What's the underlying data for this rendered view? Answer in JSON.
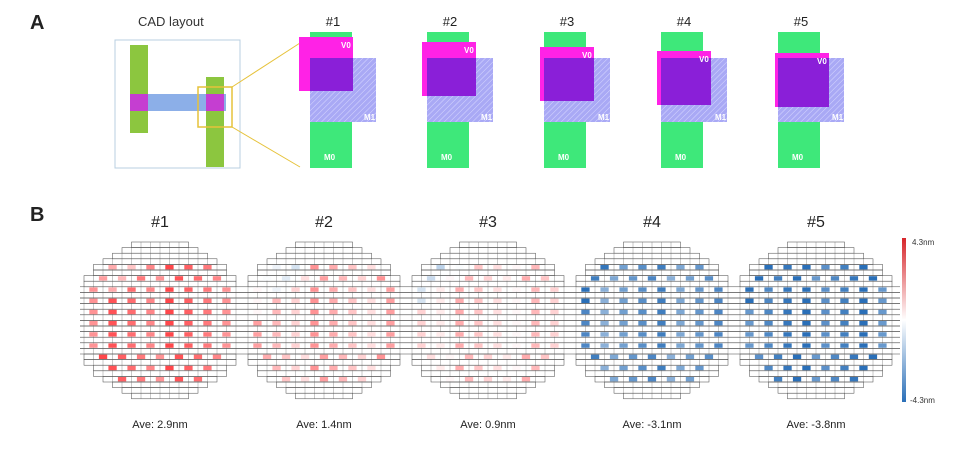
{
  "panel_a": {
    "letter": "A",
    "cad_title": "CAD layout",
    "cases": [
      {
        "label": "#1",
        "v0": "V0",
        "m1": "M1",
        "m0": "M0",
        "v0_dx": -0.55,
        "v0_dy": -0.35
      },
      {
        "label": "#2",
        "v0": "V0",
        "m1": "M1",
        "m0": "M0",
        "v0_dx": -0.25,
        "v0_dy": -0.1
      },
      {
        "label": "#3",
        "v0": "V0",
        "m1": "M1",
        "m0": "M0",
        "v0_dx": -0.2,
        "v0_dy": 0.15
      },
      {
        "label": "#4",
        "v0": "V0",
        "m1": "M1",
        "m0": "M0",
        "v0_dx": -0.2,
        "v0_dy": 0.35
      },
      {
        "label": "#5",
        "v0": "V0",
        "m1": "M1",
        "m0": "M0",
        "v0_dx": -0.15,
        "v0_dy": 0.45
      }
    ]
  },
  "panel_b": {
    "letter": "B",
    "wafers": [
      {
        "label": "#1",
        "ave": "Ave: 2.9nm",
        "ave_value": 2.9
      },
      {
        "label": "#2",
        "ave": "Ave: 1.4nm",
        "ave_value": 1.4
      },
      {
        "label": "#3",
        "ave": "Ave: 0.9nm",
        "ave_value": 0.9
      },
      {
        "label": "#4",
        "ave": "Ave: -3.1nm",
        "ave_value": -3.1
      },
      {
        "label": "#5",
        "ave": "Ave: -3.8nm",
        "ave_value": -3.8
      }
    ],
    "scale": {
      "max_label": "4.3nm",
      "min_label": "-4.3nm",
      "max": 4.3,
      "min": -4.3,
      "high_color": "#d7262b",
      "mid_color": "#ffffff",
      "low_color": "#2a6fb8"
    }
  },
  "colors": {
    "m0": "#3ee87a",
    "v0": "#ff22e6",
    "m1": "#a9a9f5",
    "overlap": "#8a1fd8",
    "m0_cad": "#8cc63f",
    "m1_cad": "#7fa6e6",
    "highlight": "#e6c23a"
  }
}
